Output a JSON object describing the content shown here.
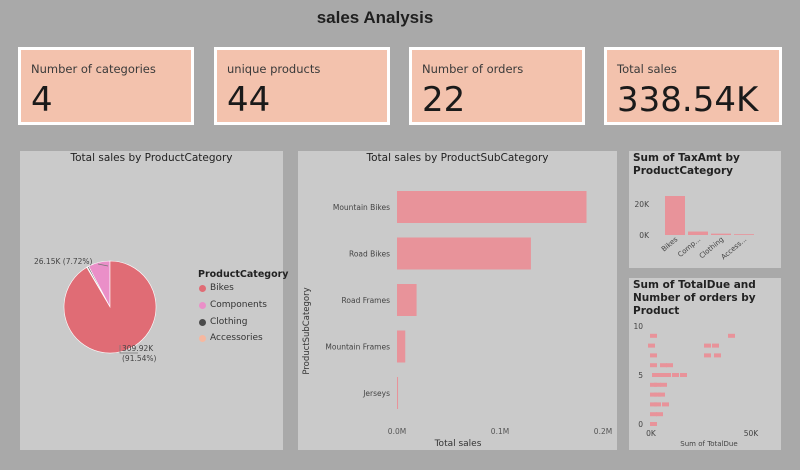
{
  "page": {
    "title": "sales Analysis"
  },
  "cards": [
    {
      "label": "Number of categories",
      "value": "4"
    },
    {
      "label": "unique products",
      "value": "44"
    },
    {
      "label": "Number of orders",
      "value": "22"
    },
    {
      "label": "Total sales",
      "value": "338.54K"
    }
  ],
  "colors": {
    "card_bg": "#f3c2ad",
    "bikes": "#e06c75",
    "components": "#ea8fc8",
    "clothing": "#4a4a4a",
    "accessories": "#f6b8a0",
    "bar": "#e8939a"
  },
  "pie": {
    "title": "Total sales by ProductCategory",
    "legend_title": "ProductCategory",
    "legend": [
      "Bikes",
      "Components",
      "Clothing",
      "Accessories"
    ],
    "label_components": "26.15K (7.72%)",
    "label_bikes_value": "309.92K",
    "label_bikes_pct": "(91.54%)"
  },
  "bars": {
    "title": "Total sales by ProductSubCategory",
    "xlabel": "Total sales",
    "ylabel": "ProductSubCategory",
    "ticks": [
      "0.0M",
      "0.1M",
      "0.2M"
    ]
  },
  "tax": {
    "title_line1": "Sum of TaxAmt by",
    "title_line2": "ProductCategory",
    "ticks": [
      "20K",
      "0K"
    ],
    "categories": [
      "Bikes",
      "Comp...",
      "Clothing",
      "Access..."
    ]
  },
  "scatter": {
    "title_line1": "Sum of TotalDue and",
    "title_line2": "Number of orders by",
    "title_line3": "Product",
    "yticks": [
      "10",
      "5",
      "0"
    ],
    "xticks": [
      "0K",
      "50K"
    ],
    "xlabel": "Sum of TotalDue"
  },
  "chart_data": [
    {
      "type": "pie",
      "title": "Total sales by ProductCategory",
      "categories": [
        "Bikes",
        "Components",
        "Clothing",
        "Accessories"
      ],
      "values": [
        309.92,
        26.15,
        1.6,
        0.87
      ],
      "unit": "K"
    },
    {
      "type": "bar",
      "orientation": "horizontal",
      "title": "Total sales by ProductSubCategory",
      "categories": [
        "Mountain Bikes",
        "Road Bikes",
        "Road Frames",
        "Mountain Frames",
        "Jerseys"
      ],
      "values": [
        0.184,
        0.13,
        0.019,
        0.008,
        0.001
      ],
      "xlabel": "Total sales",
      "ylabel": "ProductSubCategory",
      "xlim": [
        0,
        0.2
      ],
      "unit": "M"
    },
    {
      "type": "bar",
      "title": "Sum of TaxAmt by ProductCategory",
      "categories": [
        "Bikes",
        "Comp...",
        "Clothing",
        "Access..."
      ],
      "values": [
        26,
        2.3,
        0.9,
        0.2
      ],
      "ylim": [
        0,
        30
      ],
      "unit": "K"
    },
    {
      "type": "scatter",
      "title": "Sum of TotalDue and Number of orders by Product",
      "xlabel": "Sum of TotalDue",
      "xlim": [
        0,
        60
      ],
      "ylim": [
        0,
        10
      ],
      "points": [
        {
          "x": 1,
          "y": 9
        },
        {
          "x": 40,
          "y": 9
        },
        {
          "x": 28,
          "y": 8
        },
        {
          "x": 32,
          "y": 8
        },
        {
          "x": 28,
          "y": 7
        },
        {
          "x": 33,
          "y": 7
        },
        {
          "x": 0,
          "y": 8
        },
        {
          "x": 1,
          "y": 7
        },
        {
          "x": 1,
          "y": 6
        },
        {
          "x": 6,
          "y": 6
        },
        {
          "x": 9,
          "y": 6
        },
        {
          "x": 12,
          "y": 5
        },
        {
          "x": 2,
          "y": 5
        },
        {
          "x": 4,
          "y": 5
        },
        {
          "x": 6,
          "y": 5
        },
        {
          "x": 8,
          "y": 5
        },
        {
          "x": 16,
          "y": 5
        },
        {
          "x": 1,
          "y": 4
        },
        {
          "x": 3,
          "y": 4
        },
        {
          "x": 6,
          "y": 4
        },
        {
          "x": 1,
          "y": 3
        },
        {
          "x": 3,
          "y": 3
        },
        {
          "x": 5,
          "y": 3
        },
        {
          "x": 1,
          "y": 2
        },
        {
          "x": 3,
          "y": 2
        },
        {
          "x": 7,
          "y": 2
        },
        {
          "x": 1,
          "y": 1
        },
        {
          "x": 4,
          "y": 1
        },
        {
          "x": 1,
          "y": 0
        }
      ]
    }
  ]
}
